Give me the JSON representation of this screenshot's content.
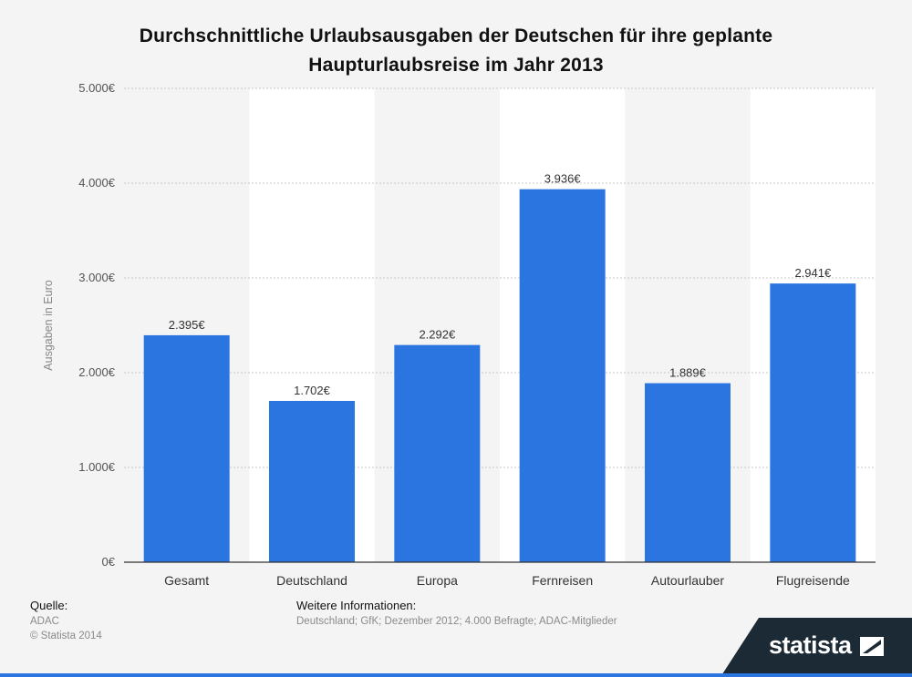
{
  "chart_data": {
    "type": "bar",
    "title": "Durchschnittliche Urlaubsausgaben der Deutschen für ihre geplante Haupturlaubsreise im Jahr 2013",
    "ylabel": "Ausgaben in Euro",
    "xlabel": "",
    "categories": [
      "Gesamt",
      "Deutschland",
      "Europa",
      "Fernreisen",
      "Autourlauber",
      "Flugreisende"
    ],
    "values": [
      2395,
      1702,
      2292,
      3936,
      1889,
      2941
    ],
    "value_labels": [
      "2.395€",
      "1.702€",
      "2.292€",
      "3.936€",
      "1.889€",
      "2.941€"
    ],
    "y_ticks": [
      0,
      1000,
      2000,
      3000,
      4000,
      5000
    ],
    "y_tick_labels": [
      "0€",
      "1.000€",
      "2.000€",
      "3.000€",
      "4.000€",
      "5.000€"
    ],
    "ylim": [
      0,
      5000
    ],
    "grid": true,
    "legend": "none",
    "colors": {
      "bar": "#2a75df",
      "band_light": "#ffffff",
      "band_dark": "#f4f4f4",
      "grid": "#c8c8c8"
    }
  },
  "footer": {
    "source_heading": "Quelle:",
    "source": "ADAC",
    "copyright": "© Statista 2014",
    "info_heading": "Weitere Informationen:",
    "info": "Deutschland; GfK; Dezember 2012; 4.000 Befragte; ADAC-Mitglieder"
  },
  "brand": {
    "name": "statista",
    "banner_color": "#1c2a35",
    "accent_color": "#2a75df"
  }
}
